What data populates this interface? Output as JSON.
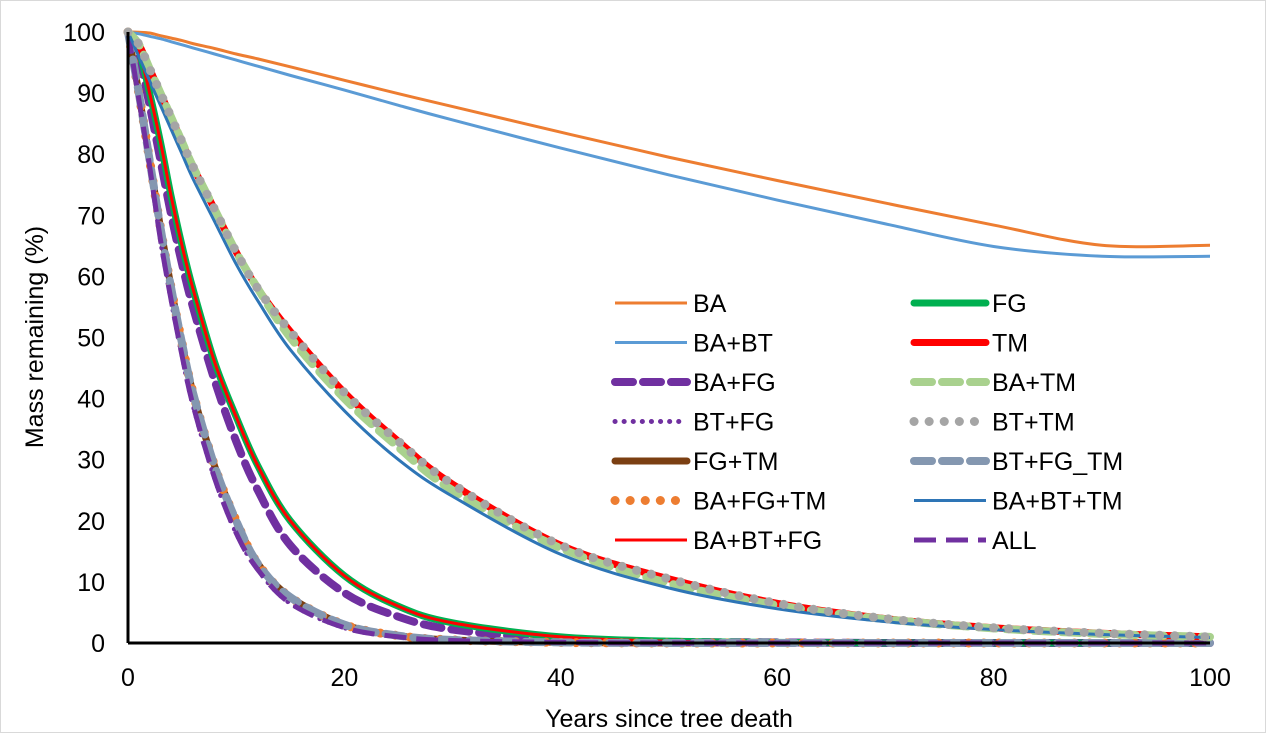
{
  "chart_data": {
    "type": "line",
    "title": "",
    "xlabel": "Years since tree death",
    "ylabel": "Mass remaining (%)",
    "xlim": [
      0,
      100
    ],
    "ylim": [
      0,
      100
    ],
    "x_ticks": [
      "0",
      "20",
      "40",
      "60",
      "80",
      "100"
    ],
    "y_ticks": [
      "0",
      "10",
      "20",
      "30",
      "40",
      "50",
      "60",
      "70",
      "80",
      "90",
      "100"
    ],
    "grid": false,
    "legend_position": "center-right",
    "x": [
      0,
      1,
      2,
      3,
      4,
      5,
      6,
      8,
      10,
      12,
      15,
      20,
      25,
      30,
      40,
      50,
      60,
      70,
      80,
      90,
      100
    ],
    "series": [
      {
        "name": "BA",
        "color": "#ED7D31",
        "style": "solid-thin",
        "values": [
          100,
          99.96,
          99.83,
          99.4,
          99.0,
          98.6,
          98.1,
          97.3,
          96.4,
          95.6,
          94.3,
          92.1,
          89.9,
          87.8,
          83.6,
          79.5,
          75.7,
          72.0,
          68.4,
          65.1,
          65.1
        ]
      },
      {
        "name": "BA+BT",
        "color": "#5B9BD5",
        "style": "solid-thin",
        "values": [
          100,
          99.7,
          99.3,
          98.9,
          98.4,
          97.9,
          97.4,
          96.4,
          95.4,
          94.4,
          92.9,
          90.5,
          88.0,
          85.6,
          81.0,
          76.6,
          72.5,
          68.6,
          64.9,
          63.3,
          63.3
        ]
      },
      {
        "name": "BA+FG",
        "color": "#7030A0",
        "style": "thick-dash",
        "values": [
          100,
          96,
          88,
          79,
          70,
          62,
          55,
          43,
          33,
          25,
          16,
          8.2,
          4.3,
          2.2,
          0.6,
          0.2,
          0.1,
          0,
          0,
          0,
          0
        ]
      },
      {
        "name": "FG",
        "color": "#00B050",
        "style": "solid-thick",
        "values": [
          100,
          97,
          90,
          82,
          73,
          65,
          58,
          46,
          37,
          29,
          20,
          11,
          6.0,
          3.3,
          1.0,
          0.3,
          0.1,
          0,
          0,
          0,
          0
        ]
      },
      {
        "name": "TM",
        "color": "#FF0000",
        "style": "solid-thick",
        "values": [
          100,
          98,
          94,
          90,
          86,
          82,
          78,
          71,
          64,
          58,
          51,
          41,
          33,
          26,
          16,
          10.5,
          6.5,
          4.0,
          2.5,
          1.6,
          1.0
        ]
      },
      {
        "name": "BA+TM",
        "color": "#A9D18E",
        "style": "thick-dash",
        "values": [
          100,
          98,
          94,
          90,
          86,
          82,
          78,
          71,
          64,
          58,
          50,
          40,
          32,
          25,
          15.5,
          9.8,
          6.2,
          3.9,
          2.4,
          1.5,
          1.0
        ]
      },
      {
        "name": "BT+FG",
        "color": "#7030A0",
        "style": "dotted",
        "values": [
          100,
          89,
          78,
          66,
          56,
          47,
          39,
          27,
          18,
          12,
          6.5,
          2.5,
          1.0,
          0.4,
          0.1,
          0,
          0,
          0,
          0,
          0,
          0
        ]
      },
      {
        "name": "BT+TM",
        "color": "#A5A5A5",
        "style": "dotted-thick",
        "values": [
          100,
          98,
          94,
          90,
          86,
          82,
          78,
          71,
          64,
          58,
          51,
          41,
          33,
          26,
          16,
          10.5,
          6.5,
          4.0,
          2.5,
          1.6,
          1.0
        ]
      },
      {
        "name": "FG+TM",
        "color": "#7B3F12",
        "style": "solid-thick",
        "values": [
          100,
          90,
          79,
          68,
          58,
          49,
          41,
          29,
          20,
          13,
          7.5,
          3.0,
          1.2,
          0.5,
          0.1,
          0,
          0,
          0,
          0,
          0,
          0
        ]
      },
      {
        "name": "BT+FG_TM",
        "color": "#8497B0",
        "style": "thick-dash",
        "values": [
          100,
          90,
          79,
          68,
          58,
          49,
          41,
          29,
          20,
          13,
          7.5,
          3.0,
          1.2,
          0.5,
          0.1,
          0,
          0,
          0,
          0,
          0,
          0
        ]
      },
      {
        "name": "BA+FG+TM",
        "color": "#ED7D31",
        "style": "dotted-thick",
        "values": [
          100,
          90,
          79,
          68,
          58,
          49,
          41,
          29,
          20,
          13,
          7.5,
          3.0,
          1.2,
          0.5,
          0.1,
          0,
          0,
          0,
          0,
          0,
          0
        ]
      },
      {
        "name": "BA+BT+TM",
        "color": "#2E75B6",
        "style": "solid-thin",
        "values": [
          100,
          96,
          92,
          88,
          84,
          80,
          76,
          69,
          62,
          56,
          48,
          38,
          30,
          24,
          14.5,
          9.0,
          5.6,
          3.5,
          2.2,
          1.4,
          0.9
        ]
      },
      {
        "name": "BA+BT+FG",
        "color": "#FF0000",
        "style": "solid-thin",
        "values": [
          100,
          97,
          90,
          82,
          73,
          65,
          58,
          46,
          37,
          29,
          20,
          11,
          6.0,
          3.3,
          1.0,
          0.3,
          0.1,
          0,
          0,
          0,
          0
        ]
      },
      {
        "name": "ALL",
        "color": "#7030A0",
        "style": "long-dash",
        "values": [
          100,
          89,
          78,
          66,
          56,
          47,
          39,
          27,
          18,
          12,
          6.5,
          2.5,
          1.0,
          0.4,
          0.1,
          0,
          0,
          0,
          0,
          0,
          0
        ]
      }
    ]
  }
}
